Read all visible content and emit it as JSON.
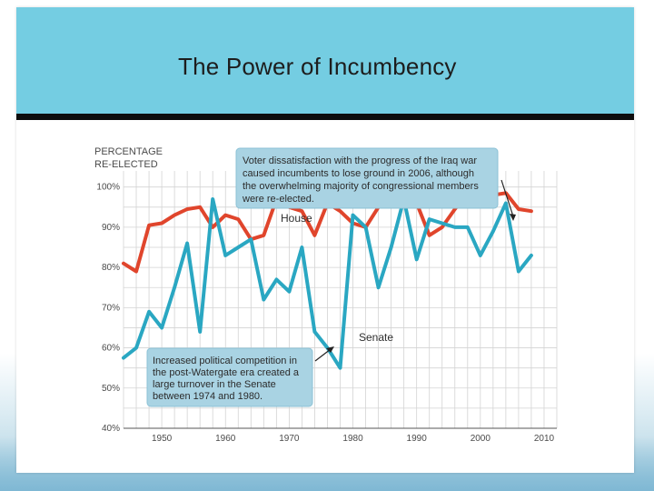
{
  "slide": {
    "title": "The Power of Incumbency"
  },
  "chart_data": {
    "type": "line",
    "ylabel_lines": [
      "PERCENTAGE",
      "RE-ELECTED"
    ],
    "xlim": [
      1944,
      2012
    ],
    "ylim": [
      40,
      100
    ],
    "x_ticks": [
      1950,
      1960,
      1970,
      1980,
      1990,
      2000,
      2010
    ],
    "y_ticks": [
      {
        "value": 40,
        "label": "40%"
      },
      {
        "value": 50,
        "label": "50%"
      },
      {
        "value": 60,
        "label": "60%"
      },
      {
        "value": 70,
        "label": "70%"
      },
      {
        "value": 80,
        "label": "80%"
      },
      {
        "value": 90,
        "label": "90%"
      },
      {
        "value": 100,
        "label": "100%"
      }
    ],
    "grid": true,
    "series": [
      {
        "name": "House",
        "color": "#e0452c",
        "x": [
          1944,
          1946,
          1948,
          1950,
          1952,
          1954,
          1956,
          1958,
          1960,
          1962,
          1964,
          1966,
          1968,
          1970,
          1972,
          1974,
          1976,
          1978,
          1980,
          1982,
          1984,
          1986,
          1988,
          1990,
          1992,
          1994,
          1996,
          1998,
          2000,
          2002,
          2004,
          2006,
          2008
        ],
        "values": [
          81,
          79,
          90.5,
          91,
          93,
          94.5,
          95,
          90,
          93,
          92,
          87,
          88,
          97,
          95,
          94,
          88,
          96,
          94,
          91,
          90,
          95,
          98,
          98.5,
          96,
          88,
          90,
          94.5,
          98.5,
          98.5,
          98,
          98.5,
          94.5,
          94
        ]
      },
      {
        "name": "Senate",
        "color": "#2aa7c2",
        "x": [
          1944,
          1946,
          1948,
          1950,
          1952,
          1954,
          1956,
          1958,
          1960,
          1962,
          1964,
          1966,
          1968,
          1970,
          1972,
          1974,
          1976,
          1978,
          1980,
          1982,
          1984,
          1986,
          1988,
          1990,
          1992,
          1994,
          1996,
          1998,
          2000,
          2002,
          2004,
          2006,
          2008
        ],
        "values": [
          57.5,
          60,
          69,
          65,
          75,
          86,
          64,
          97,
          83,
          85,
          87,
          72,
          77,
          74,
          85,
          64,
          60,
          55,
          93,
          90,
          75,
          85,
          97,
          82,
          92,
          91,
          90,
          90,
          83,
          89,
          96,
          79,
          83
        ]
      }
    ],
    "annotations": [
      {
        "lines": [
          "Voter dissatisfaction with the progress of the Iraq war",
          "caused incumbents to lose ground in 2006, although",
          "the overwhelming majority of congressional members",
          "were re-elected."
        ],
        "points_to": {
          "x": 2006,
          "value": 94.5
        }
      },
      {
        "lines": [
          "Increased political competition in",
          "the post-Watergate era created a",
          "large turnover in the Senate",
          "between 1974 and 1980."
        ],
        "points_to": {
          "x": 1977,
          "value": 62
        }
      }
    ]
  }
}
